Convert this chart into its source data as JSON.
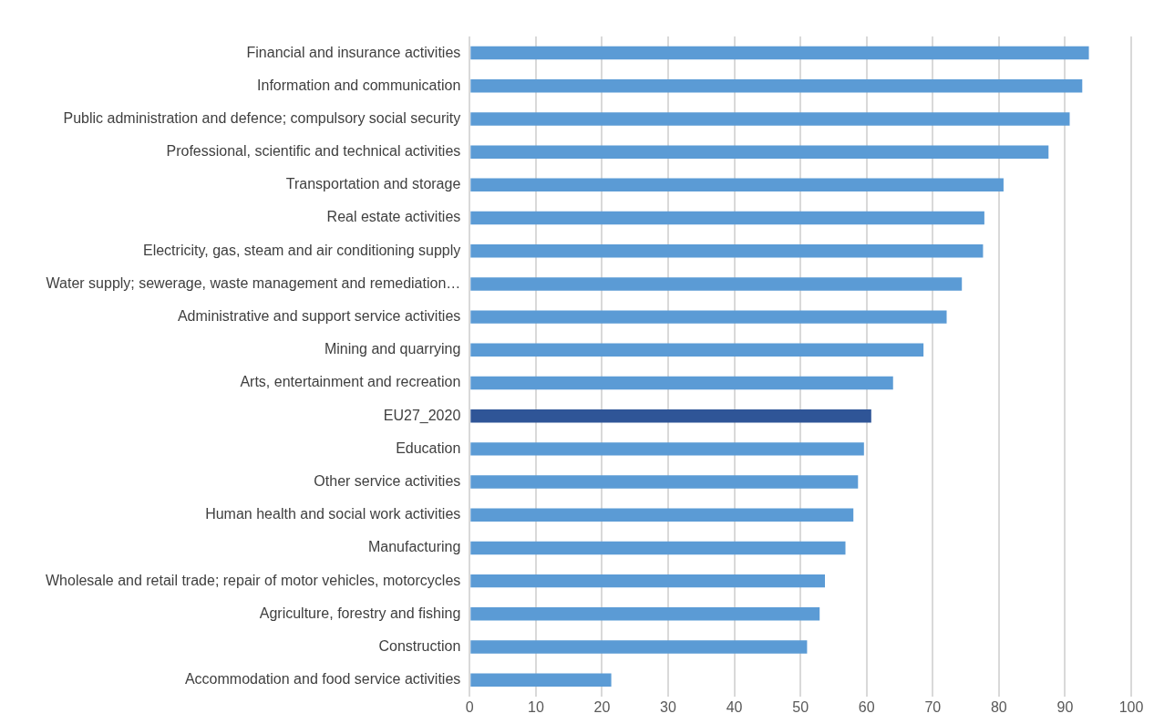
{
  "chart_data": {
    "type": "bar",
    "orientation": "horizontal",
    "categories": [
      "Financial and insurance activities",
      "Information and communication",
      "Public administration and defence; compulsory social security",
      "Professional, scientific and technical activities",
      "Transportation and storage",
      "Real estate activities",
      "Electricity, gas, steam and air conditioning supply",
      "Water supply; sewerage, waste management and remediation…",
      "Administrative and support service activities",
      "Mining and quarrying",
      "Arts, entertainment and recreation",
      "EU27_2020",
      "Education",
      "Other service activities",
      "Human health and social work activities",
      "Manufacturing",
      "Wholesale and retail trade; repair of motor vehicles, motorcycles",
      "Agriculture, forestry and fishing",
      "Construction",
      "Accommodation and food service activities"
    ],
    "values": [
      93.6,
      92.6,
      90.7,
      87.5,
      80.7,
      77.8,
      77.6,
      74.4,
      72.1,
      68.6,
      64.0,
      60.7,
      59.6,
      58.7,
      58.0,
      56.8,
      53.7,
      52.9,
      51.0,
      21.4
    ],
    "colors": [
      "#5b9bd5",
      "#5b9bd5",
      "#5b9bd5",
      "#5b9bd5",
      "#5b9bd5",
      "#5b9bd5",
      "#5b9bd5",
      "#5b9bd5",
      "#5b9bd5",
      "#5b9bd5",
      "#5b9bd5",
      "#2f5597",
      "#5b9bd5",
      "#5b9bd5",
      "#5b9bd5",
      "#5b9bd5",
      "#5b9bd5",
      "#5b9bd5",
      "#5b9bd5",
      "#5b9bd5"
    ],
    "xlim": [
      0,
      100
    ],
    "xticks": [
      0,
      10,
      20,
      30,
      40,
      50,
      60,
      70,
      80,
      90,
      100
    ],
    "grid": "x",
    "legend": false
  }
}
